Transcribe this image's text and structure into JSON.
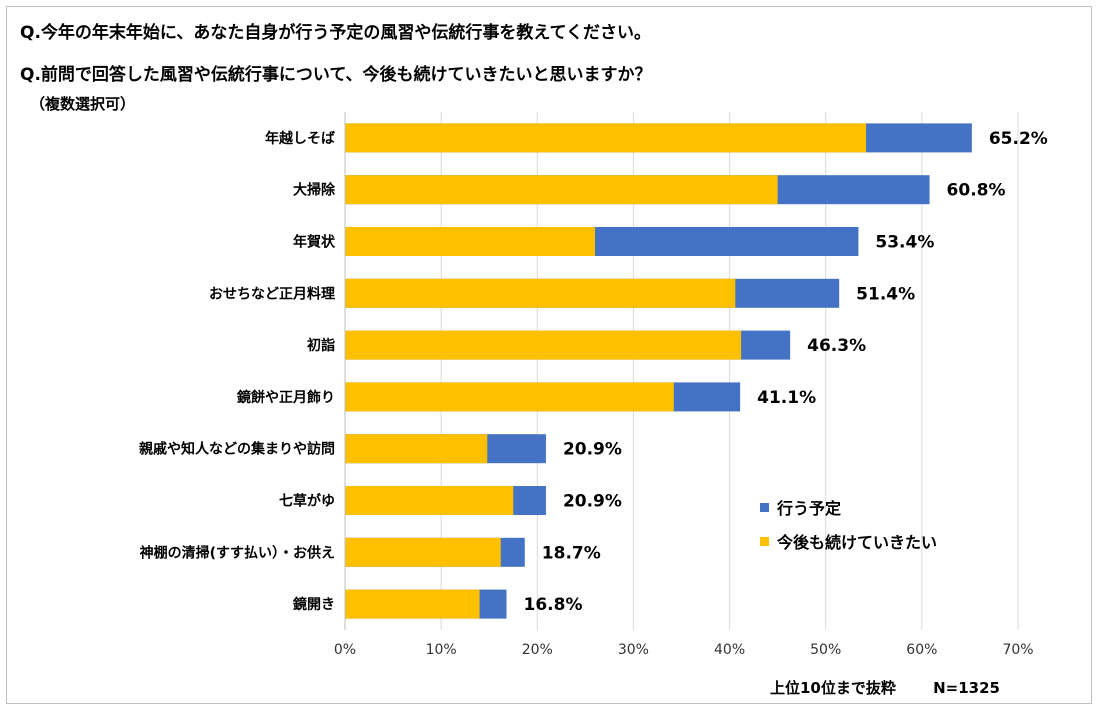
{
  "titles": {
    "q1": "Q.今年の年末年始に、あなた自身が行う予定の風習や伝統行事を教えてください。",
    "q2": "Q.前問で回答した風習や伝統行事について、今後も続けていきたいと思いますか？",
    "note": "（複数選択可）"
  },
  "footer": {
    "scope": "上位10位まで抜粋",
    "n": "N=1325"
  },
  "colors": {
    "plan": "#4472C4",
    "continue": "#FFC000",
    "grid": "#d9d9d9"
  },
  "chart_data": {
    "type": "bar",
    "orientation": "horizontal",
    "categories": [
      "年越しそば",
      "大掃除",
      "年賀状",
      "おせちなど正月料理",
      "初詣",
      "鏡餅や正月飾り",
      "親戚や知人などの集まりや訪問",
      "七草がゆ",
      "神棚の清掃(すす払い）・お供え",
      "鏡開き"
    ],
    "series": [
      {
        "name": "行う予定",
        "values": [
          65.2,
          60.8,
          53.4,
          51.4,
          46.3,
          41.1,
          20.9,
          20.9,
          18.7,
          16.8
        ]
      },
      {
        "name": "今後も続けていきたい",
        "values": [
          54.2,
          45.0,
          26.0,
          40.6,
          41.2,
          34.2,
          14.8,
          17.5,
          16.2,
          14.0
        ]
      }
    ],
    "value_labels": [
      "65.2%",
      "60.8%",
      "53.4%",
      "51.4%",
      "46.3%",
      "41.1%",
      "20.9%",
      "20.9%",
      "18.7%",
      "16.8%"
    ],
    "x_ticks": [
      "0%",
      "10%",
      "20%",
      "30%",
      "40%",
      "50%",
      "60%",
      "70%"
    ],
    "xlim": [
      0,
      70
    ],
    "grid": true,
    "legend_position": "lower-right"
  }
}
